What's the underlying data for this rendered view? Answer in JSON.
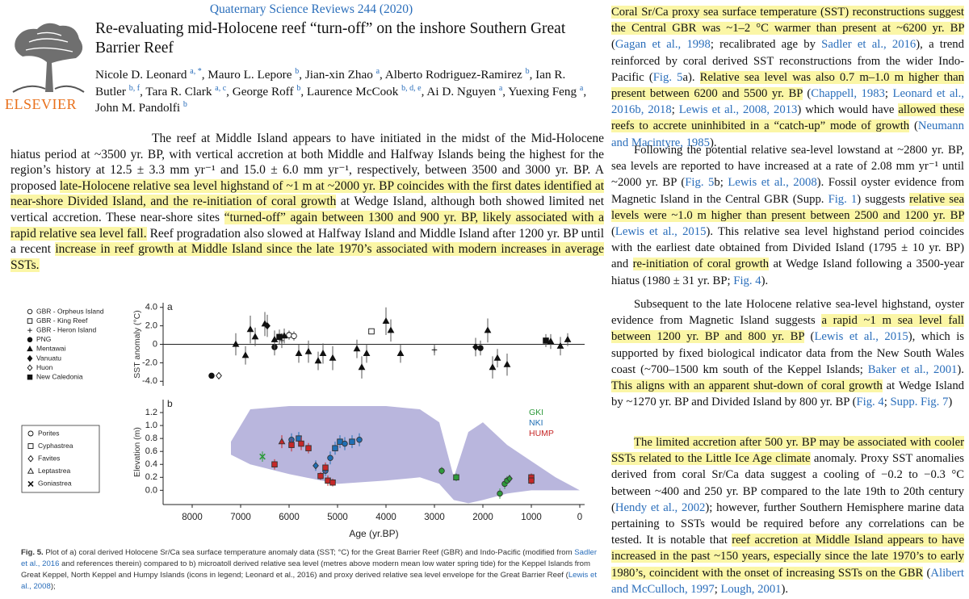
{
  "header": {
    "journal": "Quaternary Science Reviews 244 (2020)",
    "publisher": "ELSEVIER",
    "title": "Re-evaluating mid-Holocene reef “turn-off” on the inshore Southern Great Barrier Reef",
    "authors": [
      {
        "text": "Nicole D. Leonard "
      },
      {
        "text": "a, *",
        "sup": true
      },
      {
        "text": ", Mauro L. Lepore "
      },
      {
        "text": "b",
        "sup": true
      },
      {
        "text": ", Jian-xin Zhao "
      },
      {
        "text": "a",
        "sup": true
      },
      {
        "text": ", Alberto Rodriguez-Ramirez "
      },
      {
        "text": "b",
        "sup": true
      },
      {
        "text": ", Ian R. Butler "
      },
      {
        "text": "b, f",
        "sup": true
      },
      {
        "text": ", Tara R. Clark "
      },
      {
        "text": "a, c",
        "sup": true
      },
      {
        "text": ", George Roff "
      },
      {
        "text": "b",
        "sup": true
      },
      {
        "text": ", Laurence McCook "
      },
      {
        "text": "b, d, e",
        "sup": true
      },
      {
        "text": ", Ai D. Nguyen "
      },
      {
        "text": "a",
        "sup": true
      },
      {
        "text": ", Yuexing Feng "
      },
      {
        "text": "a",
        "sup": true
      },
      {
        "text": ", John M. Pandolfi "
      },
      {
        "text": "b",
        "sup": true
      }
    ]
  },
  "body": {
    "left": [
      {
        "text": "The reef at Middle Island appears to have initiated in the midst of the Mid-Holocene hiatus period at ~3500 yr. BP, with vertical accretion at both Middle and Halfway Islands being the highest for the region’s history at 12.5 ± 3.3 mm yr⁻¹ and 15.0 ± 6.0 mm yr⁻¹, respectively, between 3500 and 3000 yr. BP. A proposed "
      },
      {
        "text": "late-Holocene relative sea level highstand of ~1 m at ~2000 yr. BP coincides with the first dates identified at near-shore Divided Island, and the re-initiation of coral growth",
        "highlight": true
      },
      {
        "text": " at Wedge Island, although both showed limited net vertical accretion. These near-shore sites "
      },
      {
        "text": "“turned-off” again between 1300 and 900 yr. BP, likely associated with a rapid relative sea level fall.",
        "highlight": true
      },
      {
        "text": " Reef progradation also slowed at Halfway Island and Middle Island after 1200 yr. BP until a recent "
      },
      {
        "text": "increase in reef growth at Middle Island since the late 1970’s associated with modern increases in average SSTs.",
        "highlight": true
      }
    ],
    "right": [
      [
        {
          "text": "Coral Sr/Ca proxy sea surface temperature (SST) reconstructions suggest the Central GBR was ~1–2 °C warmer than present at ~6200 yr. BP",
          "highlight": true
        },
        {
          "text": " ("
        },
        {
          "text": "Gagan et al., 1998",
          "link": true
        },
        {
          "text": "; recalibrated age by "
        },
        {
          "text": "Sadler et al., 2016",
          "link": true
        },
        {
          "text": "), a trend reinforced by coral derived SST reconstructions from the wider Indo-Pacific ("
        },
        {
          "text": "Fig. 5",
          "link": true
        },
        {
          "text": "a). "
        },
        {
          "text": "Relative sea level was also 0.7 m–1.0 m higher than present between 6200 and 5500 yr. BP",
          "highlight": true
        },
        {
          "text": " ("
        },
        {
          "text": "Chappell, 1983",
          "link": true
        },
        {
          "text": "; "
        },
        {
          "text": "Leonard et al., 2016b, 2018",
          "link": true
        },
        {
          "text": "; "
        },
        {
          "text": "Lewis et al., 2008, 2013",
          "link": true
        },
        {
          "text": ") which would have "
        },
        {
          "text": "allowed these reefs to accrete uninhibited in a “catch-up” mode of growth",
          "highlight": true
        },
        {
          "text": " ("
        },
        {
          "text": "Neumann and Macintyre, 1985",
          "link": true
        },
        {
          "text": ")."
        }
      ],
      [
        {
          "text": "Following the potential relative sea-level lowstand at ~2800 yr. BP, sea levels are reported to have increased at a rate of 2.08 mm yr⁻¹ until ~2000 yr. BP ("
        },
        {
          "text": "Fig. 5",
          "link": true
        },
        {
          "text": "b; "
        },
        {
          "text": "Lewis et al., 2008",
          "link": true
        },
        {
          "text": "). Fossil oyster evidence from Magnetic Island in the Central GBR (Supp. "
        },
        {
          "text": "Fig. 1",
          "link": true
        },
        {
          "text": ") suggests "
        },
        {
          "text": "relative sea levels were ~1.0 m higher than present between 2500 and 1200 yr. BP",
          "highlight": true
        },
        {
          "text": " ("
        },
        {
          "text": "Lewis et al., 2015",
          "link": true
        },
        {
          "text": "). This relative sea level highstand period coincides with the earliest date obtained from Divided Island (1795 ± 10 yr. BP) and "
        },
        {
          "text": "re-initiation of coral growth",
          "highlight": true
        },
        {
          "text": " at Wedge Island following a 3500-year hiatus (1980 ± 31 yr. BP; "
        },
        {
          "text": "Fig. 4",
          "link": true
        },
        {
          "text": ")."
        }
      ],
      [
        {
          "text": "Subsequent to the late Holocene relative sea-level highstand, oyster evidence from Magnetic Island suggests "
        },
        {
          "text": "a rapid ~1 m sea level fall between 1200 yr. BP and 800 yr. BP",
          "highlight": true
        },
        {
          "text": " ("
        },
        {
          "text": "Lewis et al., 2015",
          "link": true
        },
        {
          "text": "), which is supported by fixed biological indicator data from the New South Wales coast (~700–1500 km south of the Keppel Islands; "
        },
        {
          "text": "Baker et al., 2001",
          "link": true
        },
        {
          "text": "). "
        },
        {
          "text": "This aligns with an apparent shut-down of coral growth",
          "highlight": true
        },
        {
          "text": " at Wedge Island by ~1270 yr. BP and Divided Island by 800 yr. BP ("
        },
        {
          "text": "Fig. 4",
          "link": true
        },
        {
          "text": "; "
        },
        {
          "text": "Supp. Fig. 7",
          "link": true
        },
        {
          "text": ")"
        }
      ],
      [
        {
          "text": "The limited accretion after 500 yr. BP may be associated with cooler SSTs related to the Little Ice Age climate",
          "highlight": true
        },
        {
          "text": " anomaly. Proxy SST anomalies derived from coral Sr/Ca data suggest a cooling of −0.2 to −0.3 °C between ~400 and 250 yr. BP compared to the late 19th to 20th century ("
        },
        {
          "text": "Hendy et al., 2002",
          "link": true
        },
        {
          "text": "); however, further Southern Hemisphere marine data pertaining to SSTs would be required before any correlations can be tested. It is notable that "
        },
        {
          "text": "reef accretion at Middle Island appears to have increased in the past ~150 years, especially since the late 1970’s to early 1980’s, coincident with the onset of increasing SSTs on the GBR",
          "highlight": true
        },
        {
          "text": " ("
        },
        {
          "text": "Alibert and McCulloch, 1997",
          "link": true
        },
        {
          "text": "; "
        },
        {
          "text": "Lough, 2001",
          "link": true
        },
        {
          "text": ")."
        }
      ]
    ]
  },
  "caption": [
    {
      "text": "Fig. 5.",
      "bold": true
    },
    {
      "text": " Plot of a) coral derived Holocene Sr/Ca sea surface temperature anomaly data (SST; °C) for the Great Barrier Reef (GBR) and Indo-Pacific (modified from "
    },
    {
      "text": "Sadler et al., 2016",
      "link": true
    },
    {
      "text": " and references therein) compared to b) microatoll derived relative sea level (metres above modern mean low water spring tide) for the Keppel Islands from Great Keppel, North Keppel and Humpy Islands (icons in legend; Leonard et al., 2016) and proxy derived relative sea level envelope for the Great Barrier Reef ("
    },
    {
      "text": "Lewis et al., 2008",
      "link": true
    },
    {
      "text": ");"
    }
  ],
  "chart_data": [
    {
      "type": "scatter",
      "panel_label": "a",
      "ylabel": "SST anomaly (°C)",
      "xlim": [
        8600,
        -100
      ],
      "ylim": [
        -4.5,
        4.5
      ],
      "yticks": [
        {
          "value": 4,
          "label": "4.0"
        },
        {
          "value": 2,
          "label": "2.0"
        },
        0,
        {
          "value": -2,
          "label": "-2.0"
        },
        {
          "value": -4,
          "label": "-4.0"
        }
      ],
      "zero_line": true,
      "series": [
        {
          "name": "GBR - Orpheus Island",
          "marker": "circle",
          "filled": false,
          "x": [
            6000,
            5900
          ],
          "values": [
            1.0,
            0.9
          ],
          "errors": [
            0.5,
            0.5
          ]
        },
        {
          "name": "GBR - King Reef",
          "marker": "square",
          "filled": false,
          "x": [
            4300
          ],
          "values": [
            1.4
          ],
          "errors": [
            0.3
          ]
        },
        {
          "name": "GBR - Heron Island",
          "marker": "plus",
          "filled": false,
          "x": [
            6150,
            3000
          ],
          "values": [
            0.4,
            -0.6
          ],
          "errors": [
            0.8,
            0.6
          ]
        },
        {
          "name": "PNG",
          "marker": "circle",
          "filled": true,
          "x": [
            7600,
            6300,
            2050
          ],
          "values": [
            -3.4,
            -0.3,
            -0.4
          ],
          "errors": [
            0.3,
            0.9,
            0.8
          ]
        },
        {
          "name": "Mentawai",
          "marker": "triangle",
          "filled": true,
          "x": [
            7100,
            6900,
            6800,
            6700,
            6500,
            6300,
            6100,
            5800,
            5600,
            5400,
            5300,
            5100,
            4600,
            4500,
            4400,
            4000,
            3900,
            3700,
            1900,
            1800,
            1700,
            1500,
            600,
            400,
            250
          ],
          "values": [
            0.0,
            -1.2,
            1.6,
            0.8,
            2.2,
            0.5,
            0.9,
            -1.0,
            -0.8,
            -1.8,
            -1.0,
            -1.5,
            -0.5,
            -2.5,
            -1.0,
            2.5,
            1.5,
            -1.0,
            1.5,
            -2.5,
            -1.5,
            -2.2,
            0.3,
            -0.2,
            0.5
          ],
          "errors": [
            1.2,
            1.0,
            1.5,
            1.0,
            1.3,
            1.0,
            0.8,
            1.0,
            1.2,
            1.0,
            1.1,
            1.3,
            1.0,
            1.2,
            1.0,
            1.5,
            1.2,
            1.0,
            1.3,
            1.2,
            1.0,
            1.2,
            0.8,
            1.0,
            0.7
          ]
        },
        {
          "name": "Vanuatu",
          "marker": "diamond",
          "filled": true,
          "x": [
            6450,
            2150
          ],
          "values": [
            2.0,
            -0.3
          ],
          "errors": [
            1.2,
            1.0
          ]
        },
        {
          "name": "Huon",
          "marker": "diamond",
          "filled": false,
          "x": [
            7450
          ],
          "values": [
            -3.4
          ],
          "errors": [
            0.3
          ]
        },
        {
          "name": "New Caledonia",
          "marker": "square",
          "filled": true,
          "x": [
            6200,
            700
          ],
          "values": [
            0.8,
            0.4
          ],
          "errors": [
            0.8,
            0.7
          ]
        }
      ]
    },
    {
      "type": "scatter",
      "panel_label": "b",
      "ylabel": "Elevation (m)",
      "xlabel": "Age (yr.BP)",
      "xlim": [
        8600,
        -100
      ],
      "ylim": [
        -0.22,
        1.4
      ],
      "xticks": [
        8000,
        7000,
        6000,
        5000,
        4000,
        3000,
        2000,
        1000,
        0
      ],
      "yticks": [
        1.2,
        {
          "value": 1,
          "label": "1.0"
        },
        0.8,
        0.6,
        0.4,
        0.2,
        {
          "value": 0,
          "label": "0.0"
        }
      ],
      "envelope": {
        "color": "#b9b6dd",
        "x": [
          7200,
          6800,
          6000,
          5000,
          4000,
          3300,
          2900,
          2600,
          2300,
          2000,
          1500,
          1000,
          500,
          0
        ],
        "upper": [
          0.75,
          1.25,
          1.3,
          1.3,
          1.3,
          1.25,
          1.05,
          0.2,
          0.9,
          1.05,
          0.7,
          0.45,
          0.2,
          0.0
        ],
        "lower": [
          0.55,
          0.4,
          0.25,
          0.1,
          0.15,
          0.2,
          0.1,
          -0.15,
          -0.2,
          -0.15,
          -0.05,
          0.0,
          0.0,
          0.0
        ]
      },
      "marker_legend": [
        {
          "label": "Porites",
          "marker": "circle"
        },
        {
          "label": "Cyphastrea",
          "marker": "square"
        },
        {
          "label": "Favites",
          "marker": "diamond"
        },
        {
          "label": "Leptastrea",
          "marker": "triangle"
        },
        {
          "label": "Goniastrea",
          "marker": "x"
        }
      ],
      "series": [
        {
          "name": "GKI",
          "color": "#2e9a3c",
          "x": [
            6550,
            2850,
            2550,
            1650,
            1550,
            1500,
            1450
          ],
          "values": [
            0.52,
            0.3,
            0.2,
            -0.05,
            0.1,
            0.15,
            0.18
          ],
          "errors": [
            0.08,
            0.06,
            0.06,
            0.08,
            0.08,
            0.07,
            0.06
          ],
          "markers": [
            "x",
            "circle",
            "square",
            "circle",
            "circle",
            "circle",
            "diamond"
          ]
        },
        {
          "name": "NKI",
          "color": "#1f6fb5",
          "x": [
            5950,
            5800,
            5450,
            5250,
            5150,
            5050,
            4950,
            4850,
            4700,
            4550
          ],
          "values": [
            0.78,
            0.8,
            0.38,
            0.3,
            0.5,
            0.65,
            0.75,
            0.72,
            0.75,
            0.78
          ],
          "errors": [
            0.1,
            0.1,
            0.08,
            0.08,
            0.1,
            0.1,
            0.1,
            0.1,
            0.1,
            0.1
          ],
          "markers": [
            "circle",
            "square",
            "diamond",
            "circle",
            "circle",
            "square",
            "square",
            "circle",
            "square",
            "circle"
          ]
        },
        {
          "name": "HUMP",
          "color": "#c62828",
          "x": [
            6300,
            6150,
            5950,
            5750,
            5600,
            5350,
            5250,
            5200,
            5100,
            1000,
            1000
          ],
          "values": [
            0.4,
            0.75,
            0.7,
            0.72,
            0.65,
            0.22,
            0.35,
            0.15,
            0.12,
            0.2,
            0.15
          ],
          "errors": [
            0.08,
            0.1,
            0.1,
            0.1,
            0.08,
            0.06,
            0.08,
            0.08,
            0.06,
            0.06,
            0.06
          ],
          "markers": [
            "square",
            "triangle",
            "square",
            "square",
            "square",
            "square",
            "square",
            "square",
            "square",
            "square",
            "square"
          ]
        }
      ]
    }
  ]
}
